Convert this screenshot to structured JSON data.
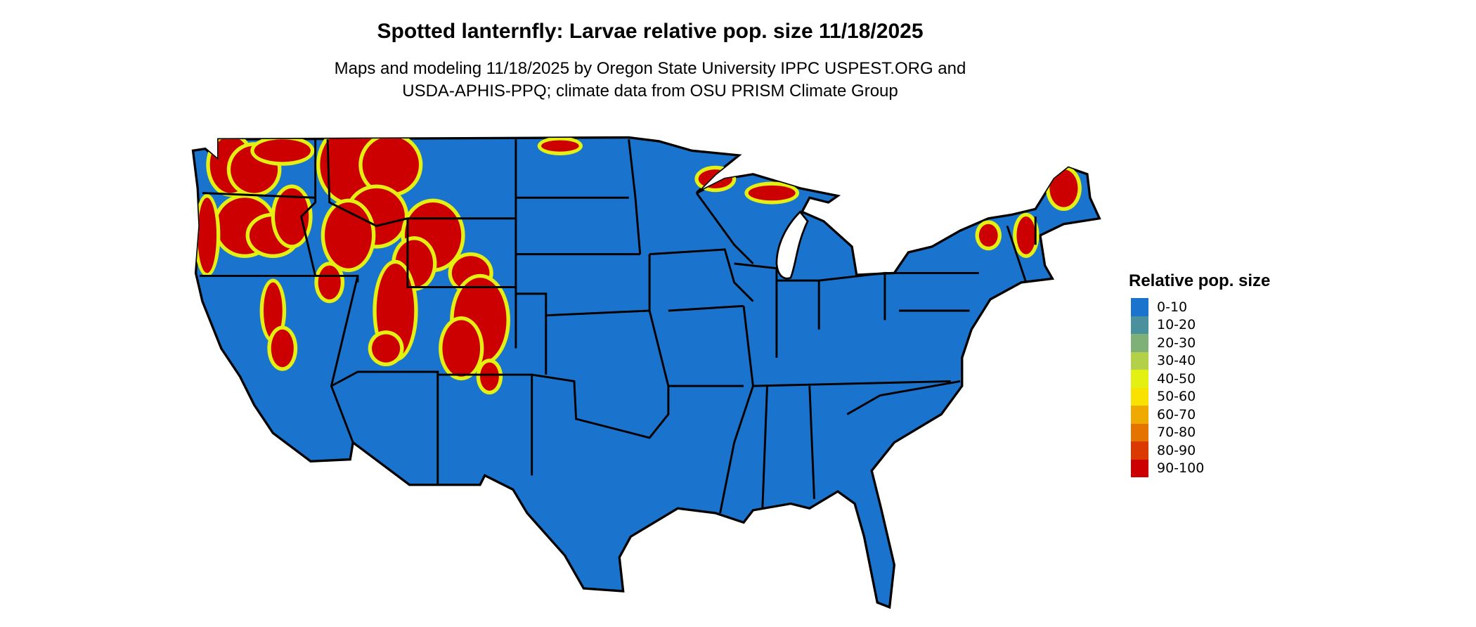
{
  "title": "Spotted lanternfly: Larvae relative pop. size 11/18/2025",
  "subtitle_line1": "Maps and modeling 11/18/2025 by Oregon State University IPPC USPEST.ORG and",
  "subtitle_line2": "USDA-APHIS-PPQ; climate data from OSU PRISM Climate Group",
  "legend": {
    "title": "Relative pop. size",
    "items": [
      {
        "label": "0-10",
        "color": "#1A74CE"
      },
      {
        "label": "10-20",
        "color": "#4A919E"
      },
      {
        "label": "20-30",
        "color": "#7FB078"
      },
      {
        "label": "30-40",
        "color": "#B2D148"
      },
      {
        "label": "40-50",
        "color": "#E3F012"
      },
      {
        "label": "50-60",
        "color": "#F9E100"
      },
      {
        "label": "60-70",
        "color": "#EFAA00"
      },
      {
        "label": "70-80",
        "color": "#E47300"
      },
      {
        "label": "80-90",
        "color": "#DA3A00"
      },
      {
        "label": "90-100",
        "color": "#CC0000"
      }
    ]
  }
}
